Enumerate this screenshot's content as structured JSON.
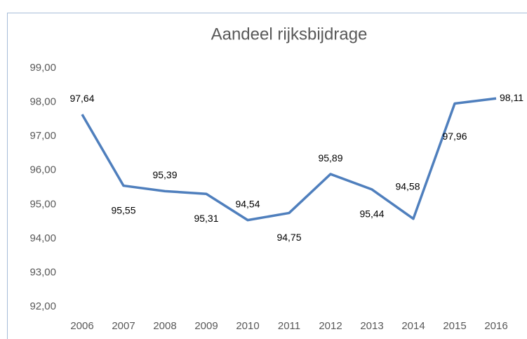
{
  "chart_data": {
    "type": "line",
    "title": "Aandeel rijksbijdrage",
    "categories": [
      "2006",
      "2007",
      "2008",
      "2009",
      "2010",
      "2011",
      "2012",
      "2013",
      "2014",
      "2015",
      "2016"
    ],
    "series": [
      {
        "name": "Aandeel rijksbijdrage",
        "color": "#4f7fbd",
        "values": [
          97.64,
          95.55,
          95.39,
          95.31,
          94.54,
          94.75,
          95.89,
          95.44,
          94.58,
          97.96,
          98.11
        ],
        "value_labels": [
          "97,64",
          "95,55",
          "95,39",
          "95,31",
          "94,54",
          "94,75",
          "95,89",
          "95,44",
          "94,58",
          "97,96",
          "98,11"
        ]
      }
    ],
    "ylim": [
      92,
      99
    ],
    "yticks": [
      {
        "value": 92,
        "label": "92,00"
      },
      {
        "value": 93,
        "label": "93,00"
      },
      {
        "value": 94,
        "label": "94,00"
      },
      {
        "value": 95,
        "label": "95,00"
      },
      {
        "value": 96,
        "label": "96,00"
      },
      {
        "value": 97,
        "label": "97,00"
      },
      {
        "value": 98,
        "label": "98,00"
      },
      {
        "value": 99,
        "label": "99,00"
      }
    ],
    "grid": false
  }
}
